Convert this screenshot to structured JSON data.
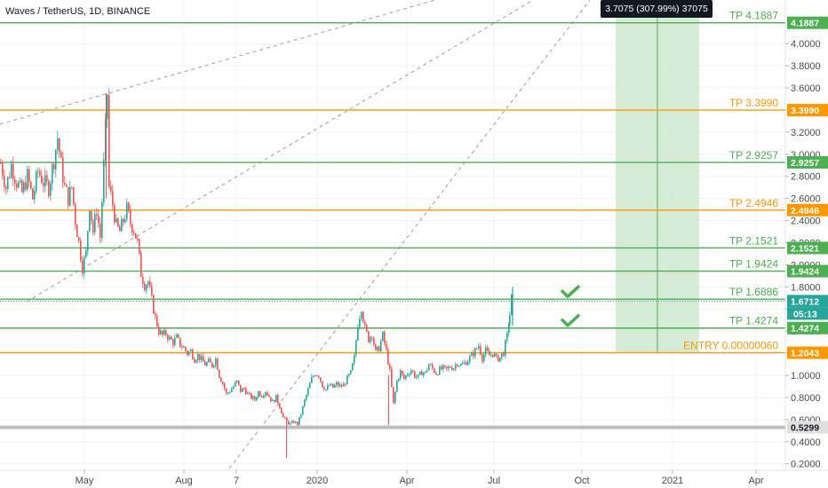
{
  "chart_data": {
    "type": "candlestick",
    "title": "Waves / TetherUS, 1D, BINANCE",
    "x_ticks": [
      "May",
      "Aug",
      "7",
      "2020",
      "Apr",
      "Jul",
      "Oct",
      "2021",
      "Apr"
    ],
    "y_ticks": [
      "0.2000",
      "0.4000",
      "0.6000",
      "0.8000",
      "1.0000",
      "1.2000",
      "1.4000",
      "1.6000",
      "1.8000",
      "2.0000",
      "2.2000",
      "2.4000",
      "2.6000",
      "2.8000",
      "3.0000",
      "3.2000",
      "3.4000",
      "3.6000",
      "3.8000",
      "4.0000"
    ],
    "levels": [
      {
        "label": "TP 4.1887",
        "value": 4.1887,
        "tag": "4.1887",
        "color": "#4caf50"
      },
      {
        "label": "TP 3.3990",
        "value": 3.399,
        "tag": "3.3990",
        "color": "#ff9800"
      },
      {
        "label": "TP 2.9257",
        "value": 2.9257,
        "tag": "2.9257",
        "color": "#4caf50"
      },
      {
        "label": "TP 2.4946",
        "value": 2.4946,
        "tag": "2.4946",
        "color": "#ff9800"
      },
      {
        "label": "TP 2.1521",
        "value": 2.1521,
        "tag": "2.1521",
        "color": "#4caf50"
      },
      {
        "label": "TP 1.9424",
        "value": 1.9424,
        "tag": "1.9424",
        "color": "#4caf50"
      },
      {
        "label": "TP 1.6886",
        "value": 1.6886,
        "tag": "",
        "color": "#4caf50"
      },
      {
        "label": "TP 1.4274",
        "value": 1.4274,
        "tag": "1.4274",
        "color": "#4caf50"
      },
      {
        "label": "ENTRY 0.00000060",
        "value": 1.2043,
        "tag": "1.2043",
        "color": "#ff9800"
      },
      {
        "label": "",
        "value": 0.5299,
        "tag": "0.5299",
        "color": "#bdbdbd"
      }
    ],
    "current_price": "1.6712",
    "countdown": "05:13",
    "measure_tooltip": "3.7075 (307.99%) 37075",
    "checkmarks": [
      "TP 1.6886",
      "TP 1.4274"
    ],
    "price_path": [
      [
        0,
        2.92
      ],
      [
        6,
        2.7
      ],
      [
        12,
        2.9
      ],
      [
        18,
        2.75
      ],
      [
        24,
        2.65
      ],
      [
        30,
        2.8
      ],
      [
        36,
        2.6
      ],
      [
        42,
        2.85
      ],
      [
        48,
        2.75
      ],
      [
        54,
        2.7
      ],
      [
        60,
        2.95
      ],
      [
        64,
        3.15
      ],
      [
        68,
        2.9
      ],
      [
        72,
        2.7
      ],
      [
        76,
        2.6
      ],
      [
        80,
        2.7
      ],
      [
        84,
        2.4
      ],
      [
        88,
        2.2
      ],
      [
        92,
        1.98
      ],
      [
        96,
        2.1
      ],
      [
        100,
        2.55
      ],
      [
        104,
        2.3
      ],
      [
        108,
        2.5
      ],
      [
        112,
        2.25
      ],
      [
        116,
        2.9
      ],
      [
        120,
        3.55
      ],
      [
        122,
        2.7
      ],
      [
        126,
        2.55
      ],
      [
        130,
        2.35
      ],
      [
        134,
        2.3
      ],
      [
        138,
        2.4
      ],
      [
        142,
        2.5
      ],
      [
        146,
        2.38
      ],
      [
        150,
        2.32
      ],
      [
        154,
        2.2
      ],
      [
        158,
        1.92
      ],
      [
        162,
        1.82
      ],
      [
        166,
        1.85
      ],
      [
        170,
        1.68
      ],
      [
        174,
        1.52
      ],
      [
        178,
        1.4
      ],
      [
        182,
        1.36
      ],
      [
        186,
        1.38
      ],
      [
        190,
        1.33
      ],
      [
        194,
        1.3
      ],
      [
        198,
        1.34
      ],
      [
        202,
        1.28
      ],
      [
        206,
        1.25
      ],
      [
        210,
        1.2
      ],
      [
        214,
        1.22
      ],
      [
        218,
        1.15
      ],
      [
        222,
        1.18
      ],
      [
        226,
        1.14
      ],
      [
        230,
        1.1
      ],
      [
        234,
        1.12
      ],
      [
        238,
        1.09
      ],
      [
        242,
        1.15
      ],
      [
        246,
        1.0
      ],
      [
        250,
        0.93
      ],
      [
        254,
        0.83
      ],
      [
        258,
        0.86
      ],
      [
        262,
        0.9
      ],
      [
        266,
        0.94
      ],
      [
        270,
        0.86
      ],
      [
        274,
        0.88
      ],
      [
        278,
        0.83
      ],
      [
        282,
        0.8
      ],
      [
        286,
        0.78
      ],
      [
        290,
        0.85
      ],
      [
        294,
        0.82
      ],
      [
        298,
        0.86
      ],
      [
        302,
        0.81
      ],
      [
        306,
        0.76
      ],
      [
        310,
        0.8
      ],
      [
        314,
        0.72
      ],
      [
        318,
        0.62
      ],
      [
        322,
        0.58
      ],
      [
        326,
        0.56
      ],
      [
        330,
        0.58
      ],
      [
        334,
        0.56
      ],
      [
        338,
        0.65
      ],
      [
        342,
        0.77
      ],
      [
        346,
        0.87
      ],
      [
        350,
        0.97
      ],
      [
        354,
        1.02
      ],
      [
        358,
        1.0
      ],
      [
        362,
        0.91
      ],
      [
        366,
        0.87
      ],
      [
        370,
        0.91
      ],
      [
        374,
        0.89
      ],
      [
        378,
        0.92
      ],
      [
        382,
        0.9
      ],
      [
        386,
        0.91
      ],
      [
        390,
        0.97
      ],
      [
        394,
        1.02
      ],
      [
        398,
        1.16
      ],
      [
        402,
        1.47
      ],
      [
        406,
        1.62
      ],
      [
        410,
        1.42
      ],
      [
        414,
        1.33
      ],
      [
        418,
        1.38
      ],
      [
        422,
        1.2
      ],
      [
        426,
        1.25
      ],
      [
        430,
        1.36
      ],
      [
        434,
        1.22
      ],
      [
        438,
        1.03
      ],
      [
        442,
        0.74
      ],
      [
        446,
        0.95
      ],
      [
        450,
        1.03
      ],
      [
        454,
        0.97
      ],
      [
        458,
        1.02
      ],
      [
        462,
        1.05
      ],
      [
        466,
        1.0
      ],
      [
        470,
        0.98
      ],
      [
        474,
        1.03
      ],
      [
        478,
        1.02
      ],
      [
        482,
        1.1
      ],
      [
        486,
        1.06
      ],
      [
        490,
        1.02
      ],
      [
        494,
        1.05
      ],
      [
        498,
        1.06
      ],
      [
        502,
        1.05
      ],
      [
        506,
        1.08
      ],
      [
        510,
        1.07
      ],
      [
        514,
        1.12
      ],
      [
        518,
        1.09
      ],
      [
        522,
        1.11
      ],
      [
        526,
        1.14
      ],
      [
        530,
        1.18
      ],
      [
        534,
        1.22
      ],
      [
        538,
        1.27
      ],
      [
        542,
        1.16
      ],
      [
        546,
        1.22
      ],
      [
        550,
        1.18
      ],
      [
        554,
        1.2
      ],
      [
        558,
        1.15
      ],
      [
        562,
        1.16
      ],
      [
        566,
        1.21
      ],
      [
        570,
        1.35
      ],
      [
        573,
        1.55
      ],
      [
        576,
        1.77
      ]
    ]
  }
}
